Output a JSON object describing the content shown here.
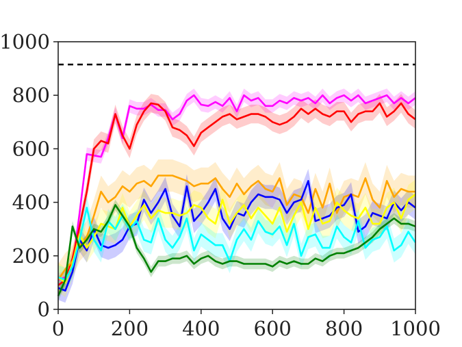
{
  "chart_data": {
    "type": "line",
    "title": "",
    "xlabel": "",
    "ylabel": "",
    "xlim": [
      0,
      1000
    ],
    "ylim": [
      0,
      1000
    ],
    "xticks": [
      "0",
      "200",
      "400",
      "600",
      "800",
      "1000"
    ],
    "yticks": [
      "0",
      "200",
      "400",
      "600",
      "800",
      "1000"
    ],
    "grid": false,
    "legend": "none",
    "reference_line": {
      "y": 915,
      "style": "dashed",
      "color": "#000000"
    },
    "x": [
      0,
      20,
      40,
      60,
      80,
      100,
      120,
      140,
      160,
      180,
      200,
      220,
      240,
      260,
      280,
      300,
      320,
      340,
      360,
      380,
      400,
      420,
      440,
      460,
      480,
      500,
      520,
      540,
      560,
      580,
      600,
      620,
      640,
      660,
      680,
      700,
      720,
      740,
      760,
      780,
      800,
      820,
      840,
      860,
      880,
      900,
      920,
      940,
      960,
      980,
      1000
    ],
    "series": [
      {
        "color": "#ff00ff",
        "band": 25,
        "values": [
          110,
          120,
          160,
          360,
          580,
          575,
          570,
          640,
          730,
          640,
          760,
          750,
          750,
          765,
          745,
          745,
          710,
          730,
          780,
          800,
          765,
          760,
          775,
          760,
          790,
          740,
          800,
          780,
          790,
          760,
          760,
          780,
          770,
          790,
          780,
          790,
          770,
          800,
          770,
          790,
          800,
          780,
          800,
          770,
          780,
          790,
          800,
          770,
          790,
          770,
          790
        ]
      },
      {
        "color": "#ff0000",
        "band": 35,
        "values": [
          90,
          110,
          190,
          310,
          440,
          600,
          630,
          620,
          730,
          650,
          600,
          690,
          740,
          770,
          765,
          740,
          680,
          670,
          650,
          610,
          660,
          680,
          700,
          720,
          730,
          710,
          720,
          730,
          730,
          720,
          700,
          690,
          700,
          720,
          750,
          730,
          750,
          730,
          720,
          740,
          740,
          700,
          730,
          740,
          740,
          770,
          720,
          740,
          770,
          730,
          710
        ]
      },
      {
        "color": "#ffa500",
        "band": 60,
        "values": [
          110,
          150,
          180,
          240,
          270,
          350,
          440,
          400,
          420,
          460,
          440,
          470,
          480,
          460,
          500,
          500,
          500,
          490,
          480,
          460,
          470,
          470,
          490,
          450,
          420,
          470,
          430,
          460,
          480,
          450,
          440,
          490,
          390,
          430,
          420,
          360,
          450,
          380,
          470,
          360,
          420,
          430,
          420,
          490,
          410,
          380,
          480,
          420,
          450,
          440,
          440
        ]
      },
      {
        "color": "#0000ff",
        "band": 45,
        "values": [
          80,
          70,
          140,
          260,
          220,
          300,
          240,
          230,
          240,
          260,
          310,
          320,
          410,
          360,
          400,
          450,
          350,
          310,
          460,
          330,
          360,
          400,
          450,
          340,
          300,
          360,
          350,
          400,
          430,
          420,
          420,
          410,
          360,
          400,
          410,
          480,
          330,
          340,
          350,
          380,
          390,
          430,
          290,
          310,
          360,
          350,
          340,
          400,
          370,
          400,
          380
        ]
      },
      {
        "color": "#ffff00",
        "band": 55,
        "values": [
          120,
          100,
          170,
          280,
          230,
          270,
          320,
          310,
          300,
          380,
          310,
          350,
          390,
          340,
          370,
          360,
          360,
          350,
          360,
          390,
          380,
          340,
          320,
          410,
          320,
          360,
          390,
          340,
          380,
          350,
          320,
          380,
          290,
          350,
          400,
          300,
          380,
          320,
          330,
          400,
          370,
          350,
          340,
          380,
          320,
          320,
          380,
          400,
          340,
          410,
          430
        ]
      },
      {
        "color": "#00ffff",
        "band": 45,
        "values": [
          120,
          110,
          160,
          260,
          380,
          260,
          220,
          330,
          300,
          350,
          300,
          330,
          260,
          250,
          340,
          260,
          230,
          270,
          340,
          220,
          280,
          260,
          240,
          240,
          180,
          260,
          300,
          260,
          330,
          290,
          280,
          310,
          240,
          320,
          200,
          270,
          280,
          230,
          230,
          310,
          270,
          250,
          330,
          230,
          260,
          270,
          310,
          220,
          240,
          290,
          250
        ]
      },
      {
        "color": "#008000",
        "band": 20,
        "values": [
          50,
          110,
          310,
          230,
          260,
          300,
          290,
          330,
          390,
          350,
          310,
          230,
          190,
          140,
          180,
          180,
          190,
          190,
          200,
          170,
          190,
          200,
          180,
          170,
          180,
          180,
          170,
          170,
          170,
          170,
          160,
          180,
          170,
          180,
          170,
          170,
          190,
          180,
          200,
          210,
          210,
          220,
          230,
          250,
          270,
          300,
          320,
          340,
          320,
          320,
          310
        ]
      }
    ]
  }
}
